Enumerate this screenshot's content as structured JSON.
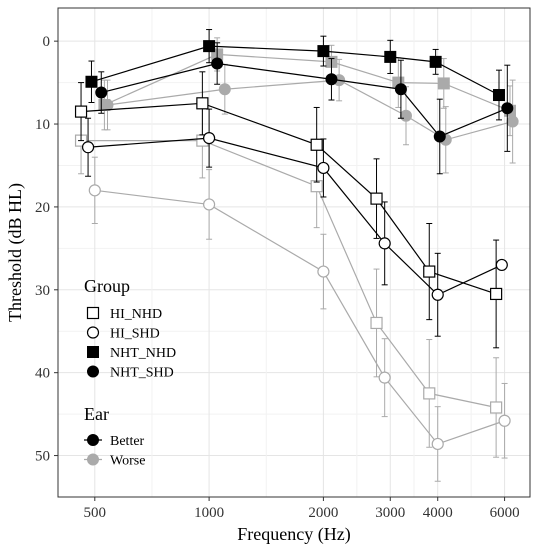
{
  "chart_data": {
    "type": "line",
    "xlabel": "Frequency (Hz)",
    "ylabel": "Threshold (dB HL)",
    "x_scale": "log",
    "x_ticks": [
      500,
      1000,
      2000,
      3000,
      4000,
      6000
    ],
    "y_ticks": [
      0,
      10,
      20,
      30,
      40,
      50
    ],
    "xlim": [
      400,
      7000
    ],
    "ylim": [
      -4,
      55
    ],
    "y_reversed": true,
    "grid": true,
    "legend": {
      "position": "left-inside",
      "group": {
        "title": "Group",
        "items": [
          {
            "label": "HI_NHD",
            "shape": "square",
            "filled": false
          },
          {
            "label": "HI_SHD",
            "shape": "circle",
            "filled": false
          },
          {
            "label": "NHT_NHD",
            "shape": "square",
            "filled": true
          },
          {
            "label": "NHT_SHD",
            "shape": "circle",
            "filled": true
          }
        ]
      },
      "ear": {
        "title": "Ear",
        "items": [
          {
            "label": "Better",
            "color": "#000000"
          },
          {
            "label": "Worse",
            "color": "#aaaaaa"
          }
        ]
      }
    },
    "series": [
      {
        "group": "HI_NHD",
        "ear": "Better",
        "shape": "square",
        "filled": false,
        "color": "#000000",
        "points": [
          {
            "x": 460,
            "y": 8.5,
            "err": 3.5
          },
          {
            "x": 960,
            "y": 7.5,
            "err": 3.8
          },
          {
            "x": 1920,
            "y": 12.5,
            "err": 4.5
          },
          {
            "x": 2760,
            "y": 19.0,
            "err": 4.8
          },
          {
            "x": 3800,
            "y": 27.8,
            "err": 5.8
          },
          {
            "x": 5700,
            "y": 30.5,
            "err": 6.5
          }
        ]
      },
      {
        "group": "HI_NHD",
        "ear": "Worse",
        "shape": "square",
        "filled": false,
        "color": "#aaaaaa",
        "points": [
          {
            "x": 460,
            "y": 12.0,
            "err": 4.0
          },
          {
            "x": 960,
            "y": 12.0,
            "err": 4.5
          },
          {
            "x": 1920,
            "y": 17.5,
            "err": 5.0
          },
          {
            "x": 2760,
            "y": 34.0,
            "err": 6.5
          },
          {
            "x": 3800,
            "y": 42.5,
            "err": 6.5
          },
          {
            "x": 5700,
            "y": 44.2,
            "err": 6.0
          }
        ]
      },
      {
        "group": "HI_SHD",
        "ear": "Better",
        "shape": "circle",
        "filled": false,
        "color": "#000000",
        "points": [
          {
            "x": 480,
            "y": 12.8,
            "err": 3.5
          },
          {
            "x": 1000,
            "y": 11.7,
            "err": 3.5
          },
          {
            "x": 2000,
            "y": 15.3,
            "err": 3.5
          },
          {
            "x": 2900,
            "y": 24.4,
            "err": 5.0
          },
          {
            "x": 4000,
            "y": 30.6,
            "err": 5.0
          },
          {
            "x": 5900,
            "y": 27.0,
            "err": 0
          }
        ]
      },
      {
        "group": "HI_SHD",
        "ear": "Worse",
        "shape": "circle",
        "filled": false,
        "color": "#aaaaaa",
        "points": [
          {
            "x": 500,
            "y": 18.0,
            "err": 4.0
          },
          {
            "x": 1000,
            "y": 19.7,
            "err": 4.2
          },
          {
            "x": 2000,
            "y": 27.8,
            "err": 4.5
          },
          {
            "x": 2900,
            "y": 40.6,
            "err": 4.7
          },
          {
            "x": 4000,
            "y": 48.6,
            "err": 4.5
          },
          {
            "x": 6000,
            "y": 45.8,
            "err": 4.5
          }
        ]
      },
      {
        "group": "NHT_NHD",
        "ear": "Better",
        "shape": "square",
        "filled": true,
        "color": "#000000",
        "points": [
          {
            "x": 490,
            "y": 4.9,
            "err": 2.5
          },
          {
            "x": 1000,
            "y": 0.6,
            "err": 2.0
          },
          {
            "x": 2000,
            "y": 1.2,
            "err": 1.8
          },
          {
            "x": 3000,
            "y": 1.9,
            "err": 2.0
          },
          {
            "x": 3950,
            "y": 2.5,
            "err": 1.5
          },
          {
            "x": 5800,
            "y": 6.5,
            "err": 3.0
          }
        ]
      },
      {
        "group": "NHT_NHD",
        "ear": "Worse",
        "shape": "square",
        "filled": true,
        "color": "#aaaaaa",
        "points": [
          {
            "x": 530,
            "y": 7.7,
            "err": 3.0
          },
          {
            "x": 1050,
            "y": 1.6,
            "err": 2.0
          },
          {
            "x": 2100,
            "y": 2.5,
            "err": 2.0
          },
          {
            "x": 3150,
            "y": 5.0,
            "err": 3.0
          },
          {
            "x": 4150,
            "y": 5.1,
            "err": 3.0
          },
          {
            "x": 6200,
            "y": 8.4,
            "err": 3.0
          }
        ]
      },
      {
        "group": "NHT_SHD",
        "ear": "Better",
        "shape": "circle",
        "filled": true,
        "color": "#000000",
        "points": [
          {
            "x": 520,
            "y": 6.2,
            "err": 2.5
          },
          {
            "x": 1050,
            "y": 2.7,
            "err": 2.5
          },
          {
            "x": 2100,
            "y": 4.6,
            "err": 2.5
          },
          {
            "x": 3200,
            "y": 5.8,
            "err": 3.5
          },
          {
            "x": 4050,
            "y": 11.5,
            "err": 4.5
          },
          {
            "x": 6100,
            "y": 8.1,
            "err": 5.2
          }
        ]
      },
      {
        "group": "NHT_SHD",
        "ear": "Worse",
        "shape": "circle",
        "filled": true,
        "color": "#aaaaaa",
        "points": [
          {
            "x": 540,
            "y": 7.7,
            "err": 3.0
          },
          {
            "x": 1100,
            "y": 5.8,
            "err": 3.0
          },
          {
            "x": 2200,
            "y": 4.7,
            "err": 2.5
          },
          {
            "x": 3300,
            "y": 9.0,
            "err": 3.5
          },
          {
            "x": 4200,
            "y": 11.9,
            "err": 4.0
          },
          {
            "x": 6300,
            "y": 9.7,
            "err": 5.0
          }
        ]
      }
    ]
  }
}
